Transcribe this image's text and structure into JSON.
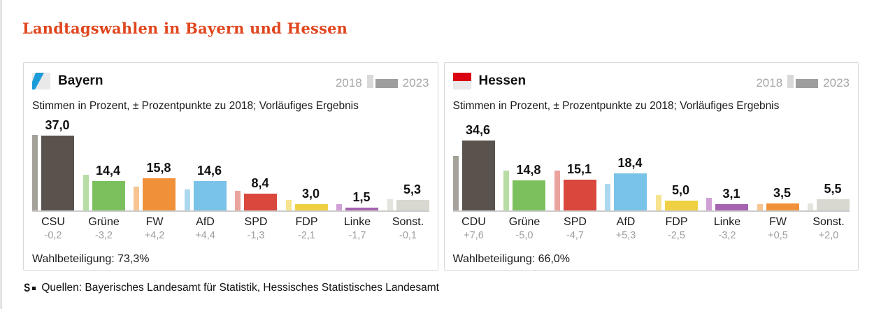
{
  "page": {
    "title": "Landtagswahlen in Bayern und Hessen",
    "source_line": "Quellen: Bayerisches Landesamt für Statistik, Hessisches Statistisches Landesamt",
    "logo_glyph": "S"
  },
  "legend": {
    "left_label": "2018",
    "right_label": "2023",
    "swatch_2018_color": "#d9d9d9",
    "swatch_2023_color": "#9e9e9e"
  },
  "chart_data": [
    {
      "type": "bar",
      "region": "Bayern",
      "flag": {
        "type": "bayern-diagonal",
        "blue": "#1b9dd9",
        "bg": "#e9e9e9"
      },
      "subtitle": "Stimmen in Prozent, ± Prozentpunkte zu 2018; Vorläufiges Ergebnis",
      "turnout": "Wahlbeteiligung: 73,3%",
      "categories": [
        "CSU",
        "Grüne",
        "FW",
        "AfD",
        "SPD",
        "FDP",
        "Linke",
        "Sonst."
      ],
      "series": [
        {
          "name": "2018",
          "values": [
            37.2,
            17.6,
            11.6,
            10.2,
            9.7,
            5.1,
            3.2,
            5.4
          ]
        },
        {
          "name": "2023",
          "values": [
            37.0,
            14.4,
            15.8,
            14.6,
            8.4,
            3.0,
            1.5,
            5.3
          ]
        }
      ],
      "value_labels": [
        "37,0",
        "14,4",
        "15,8",
        "14,6",
        "8,4",
        "3,0",
        "1,5",
        "5,3"
      ],
      "delta_labels": [
        "-0,2",
        "-3,2",
        "+4,2",
        "+4,4",
        "-1,3",
        "-2,1",
        "-1,7",
        "-0,1"
      ],
      "colors_2023": [
        "#5a524c",
        "#7cc05e",
        "#f0913a",
        "#79c2e8",
        "#d9473d",
        "#efd042",
        "#a563b1",
        "#d9d8d0"
      ],
      "colors_2018": [
        "#a5a19b",
        "#b7dda4",
        "#f7c492",
        "#abd8ef",
        "#eba49d",
        "#f6e490",
        "#d0a0d6",
        "#e4e3dd"
      ],
      "ylim": [
        0,
        40
      ],
      "grid": false,
      "legend_position": "top-right"
    },
    {
      "type": "bar",
      "region": "Hessen",
      "flag": {
        "type": "hessen-bicolor",
        "red": "#d90011",
        "bg": "#e9e9e9"
      },
      "subtitle": "Stimmen in Prozent, ± Prozentpunkte zu 2018; Vorläufiges Ergebnis",
      "turnout": "Wahlbeteiligung: 66,0%",
      "categories": [
        "CDU",
        "Grüne",
        "SPD",
        "AfD",
        "FDP",
        "Linke",
        "FW",
        "Sonst."
      ],
      "series": [
        {
          "name": "2018",
          "values": [
            27.0,
            19.8,
            19.8,
            13.1,
            7.5,
            6.3,
            3.0,
            3.5
          ]
        },
        {
          "name": "2023",
          "values": [
            34.6,
            14.8,
            15.1,
            18.4,
            5.0,
            3.1,
            3.5,
            5.5
          ]
        }
      ],
      "value_labels": [
        "34,6",
        "14,8",
        "15,1",
        "18,4",
        "5,0",
        "3,1",
        "3,5",
        "5,5"
      ],
      "delta_labels": [
        "+7,6",
        "-5,0",
        "-4,7",
        "+5,3",
        "-2,5",
        "-3,2",
        "+0,5",
        "+2,0"
      ],
      "colors_2023": [
        "#5a524c",
        "#7cc05e",
        "#d9473d",
        "#79c2e8",
        "#efd042",
        "#a563b1",
        "#f0913a",
        "#d9d8d0"
      ],
      "colors_2018": [
        "#a5a19b",
        "#b7dda4",
        "#eba49d",
        "#abd8ef",
        "#f6e490",
        "#d0a0d6",
        "#f7c492",
        "#e4e3dd"
      ],
      "ylim": [
        0,
        40
      ],
      "grid": false,
      "legend_position": "top-right"
    }
  ]
}
